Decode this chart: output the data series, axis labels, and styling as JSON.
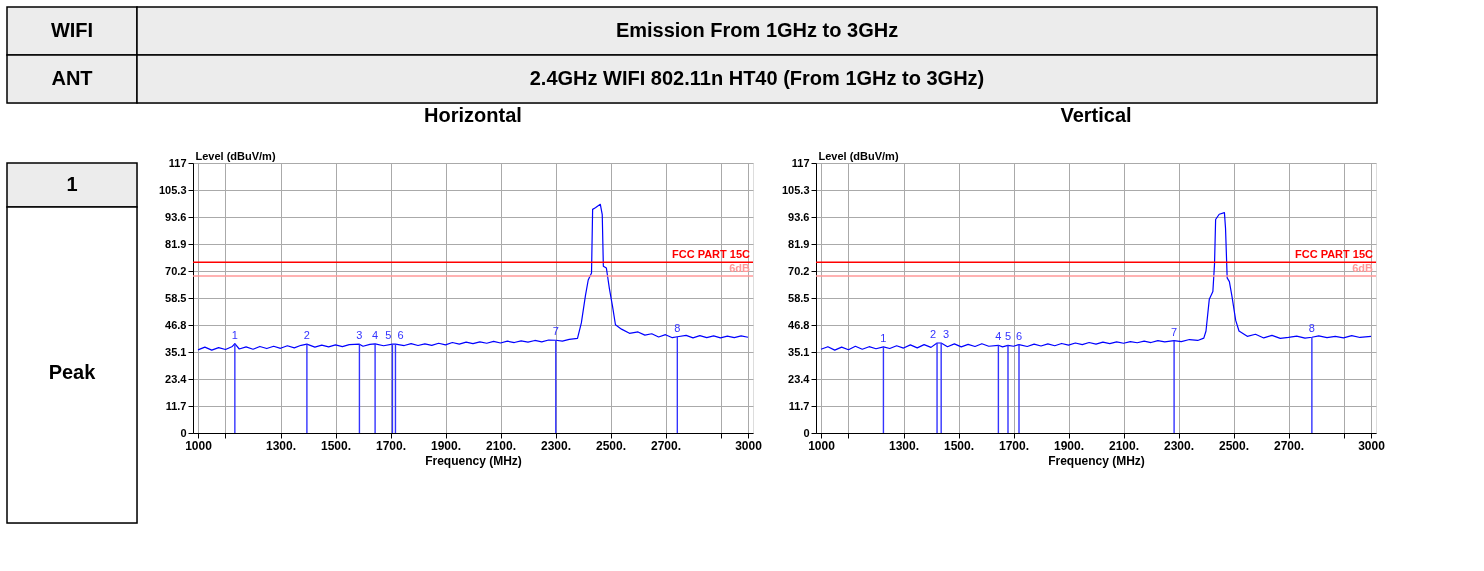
{
  "chart_data": [
    {
      "type": "other",
      "annotations": [
        "WIFI",
        "Emission From 1GHz to 3GHz",
        "ANT",
        "2.4GHz WIFI 802.11n HT40 (From 1GHz to 3GHz)",
        "1",
        "Peak"
      ]
    },
    {
      "type": "line",
      "title": "Horizontal",
      "xlabel": "Frequency (MHz)",
      "ylabel": "Level (dBuV/m)",
      "xlim": [
        1000,
        3000
      ],
      "ylim": [
        0,
        117
      ],
      "xticks": [
        1000,
        {
          "value": 1100,
          "label": null
        },
        {
          "value": 1300,
          "label": "1300."
        },
        {
          "value": 1500,
          "label": "1500."
        },
        {
          "value": 1700,
          "label": "1700."
        },
        {
          "value": 1900,
          "label": "1900."
        },
        {
          "value": 2100,
          "label": "2100."
        },
        {
          "value": 2300,
          "label": "2300."
        },
        {
          "value": 2500,
          "label": "2500."
        },
        {
          "value": 2700,
          "label": "2700."
        },
        {
          "value": 2900,
          "label": null
        },
        3000
      ],
      "yticks": [
        0,
        11.7,
        23.4,
        35.1,
        46.8,
        58.5,
        70.2,
        81.9,
        93.6,
        105.3,
        117
      ],
      "grid": true,
      "ref_lines": [
        {
          "axis": "y",
          "value": 74,
          "label": "FCC PART 15C",
          "color": "#ff0000"
        },
        {
          "axis": "y",
          "value": 68,
          "label": "6dB",
          "color": "#ff9999"
        }
      ],
      "series": [
        {
          "type": "line",
          "color": "#0000ff",
          "x": [
            1000,
            1025,
            1050,
            1075,
            1100,
            1125,
            1134,
            1150,
            1175,
            1200,
            1225,
            1250,
            1275,
            1300,
            1325,
            1350,
            1375,
            1396,
            1425,
            1450,
            1475,
            1500,
            1525,
            1550,
            1587,
            1600,
            1625,
            1644,
            1675,
            1707,
            1718,
            1750,
            1775,
            1800,
            1825,
            1850,
            1875,
            1900,
            1925,
            1950,
            1975,
            2000,
            2025,
            2050,
            2075,
            2100,
            2125,
            2150,
            2175,
            2200,
            2225,
            2250,
            2275,
            2301,
            2325,
            2350,
            2380,
            2394,
            2409,
            2419,
            2431,
            2435,
            2445,
            2463,
            2470,
            2474,
            2485,
            2496,
            2508,
            2518,
            2540,
            2569,
            2600,
            2625,
            2650,
            2675,
            2700,
            2725,
            2743,
            2775,
            2800,
            2825,
            2850,
            2875,
            2900,
            2925,
            2950,
            2975,
            3000
          ],
          "values": [
            36.0,
            37.2,
            35.9,
            37.0,
            36.2,
            37.5,
            38.7,
            36.4,
            37.3,
            36.3,
            37.5,
            36.6,
            37.6,
            36.7,
            37.8,
            36.9,
            38.0,
            38.5,
            37.2,
            38.1,
            37.3,
            38.2,
            37.4,
            38.3,
            38.5,
            37.6,
            38.4,
            38.6,
            37.8,
            38.5,
            38.5,
            37.9,
            38.7,
            37.9,
            38.6,
            38.0,
            38.9,
            38.2,
            39.2,
            38.5,
            39.4,
            38.7,
            39.5,
            38.9,
            39.7,
            39.0,
            39.8,
            39.2,
            39.9,
            39.4,
            40.1,
            39.5,
            40.3,
            40.2,
            39.8,
            40.6,
            41.0,
            47.7,
            59.6,
            66.3,
            69.3,
            96.9,
            97.6,
            99.1,
            94.6,
            72.3,
            71.5,
            62.6,
            54.4,
            46.9,
            45.0,
            43.2,
            43.8,
            42.4,
            43.0,
            41.6,
            42.6,
            41.3,
            41.7,
            42.3,
            41.2,
            42.2,
            41.3,
            42.1,
            41.2,
            42.0,
            41.3,
            42.1,
            41.5
          ]
        },
        {
          "type": "bar",
          "color": "#3333ff",
          "x": [
            1134,
            1396,
            1587,
            1644,
            1707,
            1718,
            2301,
            2743
          ],
          "values": [
            38.7,
            38.5,
            38.5,
            38.6,
            38.5,
            38.5,
            40.2,
            41.7
          ]
        }
      ],
      "annotations": [
        {
          "text": "1",
          "x": 1134,
          "y": 38.7
        },
        {
          "text": "2",
          "x": 1396,
          "y": 38.5
        },
        {
          "text": "3",
          "x": 1587,
          "y": 38.5
        },
        {
          "text": "4",
          "x": 1644,
          "y": 38.6
        },
        {
          "text": "5",
          "x": 1707,
          "y": 38.5
        },
        {
          "text": "6",
          "x": 1718,
          "y": 38.5
        },
        {
          "text": "7",
          "x": 2301,
          "y": 40.2
        },
        {
          "text": "8",
          "x": 2743,
          "y": 41.7
        }
      ]
    },
    {
      "type": "line",
      "title": "Vertical",
      "xlabel": "Frequency (MHz)",
      "ylabel": "Level (dBuV/m)",
      "xlim": [
        1000,
        3000
      ],
      "ylim": [
        0,
        117
      ],
      "xticks": [
        1000,
        {
          "value": 1100,
          "label": null
        },
        {
          "value": 1300,
          "label": "1300."
        },
        {
          "value": 1500,
          "label": "1500."
        },
        {
          "value": 1700,
          "label": "1700."
        },
        {
          "value": 1900,
          "label": "1900."
        },
        {
          "value": 2100,
          "label": "2100."
        },
        {
          "value": 2300,
          "label": "2300."
        },
        {
          "value": 2500,
          "label": "2500."
        },
        {
          "value": 2700,
          "label": "2700."
        },
        {
          "value": 2900,
          "label": null
        },
        3000
      ],
      "yticks": [
        0,
        11.7,
        23.4,
        35.1,
        46.8,
        58.5,
        70.2,
        81.9,
        93.6,
        105.3,
        117
      ],
      "grid": true,
      "ref_lines": [
        {
          "axis": "y",
          "value": 74,
          "label": "FCC PART 15C",
          "color": "#ff0000"
        },
        {
          "axis": "y",
          "value": 68,
          "label": "6dB",
          "color": "#ff9999"
        }
      ],
      "series": [
        {
          "type": "line",
          "color": "#0000ff",
          "x": [
            1000,
            1025,
            1050,
            1075,
            1100,
            1125,
            1150,
            1175,
            1200,
            1227,
            1250,
            1275,
            1300,
            1325,
            1350,
            1375,
            1400,
            1422,
            1437,
            1460,
            1485,
            1510,
            1535,
            1560,
            1585,
            1610,
            1645,
            1660,
            1680,
            1700,
            1720,
            1750,
            1775,
            1800,
            1825,
            1850,
            1875,
            1900,
            1925,
            1950,
            1975,
            2000,
            2025,
            2050,
            2075,
            2100,
            2125,
            2150,
            2175,
            2200,
            2225,
            2250,
            2284,
            2310,
            2340,
            2370,
            2392,
            2400,
            2412,
            2425,
            2431,
            2435,
            2448,
            2467,
            2471,
            2477,
            2485,
            2494,
            2508,
            2520,
            2550,
            2580,
            2610,
            2640,
            2670,
            2700,
            2730,
            2760,
            2785,
            2810,
            2840,
            2870,
            2900,
            2930,
            2960,
            3000
          ],
          "values": [
            36.3,
            37.4,
            35.9,
            37.2,
            36.1,
            37.6,
            36.3,
            37.4,
            36.5,
            37.3,
            36.6,
            37.8,
            36.8,
            38.2,
            36.9,
            38.3,
            37.1,
            39.0,
            39.0,
            37.4,
            38.6,
            37.3,
            38.4,
            37.5,
            38.7,
            37.6,
            38.0,
            37.3,
            38.0,
            37.6,
            38.3,
            37.5,
            38.5,
            37.7,
            38.6,
            37.8,
            38.8,
            38.1,
            39.0,
            38.3,
            39.2,
            38.5,
            39.4,
            38.7,
            39.5,
            38.9,
            39.6,
            39.1,
            39.8,
            39.2,
            40.0,
            39.5,
            40.0,
            39.6,
            40.5,
            40.1,
            41.1,
            44.2,
            58.0,
            61.3,
            73.3,
            92.5,
            94.8,
            95.5,
            88.7,
            67.2,
            65.6,
            59.5,
            48.8,
            44.2,
            41.9,
            42.8,
            41.2,
            42.3,
            41.0,
            41.4,
            42.0,
            41.1,
            41.5,
            42.1,
            41.3,
            41.9,
            41.2,
            42.2,
            41.4,
            41.9
          ]
        },
        {
          "type": "bar",
          "color": "#3333ff",
          "x": [
            1227,
            1422,
            1437,
            1645,
            1680,
            1720,
            2284,
            2785
          ],
          "values": [
            37.3,
            39.0,
            39.0,
            38.0,
            38.0,
            38.3,
            40.0,
            41.5
          ]
        }
      ],
      "annotations": [
        {
          "text": "1",
          "x": 1227,
          "y": 37.3
        },
        {
          "text": "2",
          "x": 1422,
          "y": 39.0
        },
        {
          "text": "3",
          "x": 1437,
          "y": 39.0
        },
        {
          "text": "4",
          "x": 1645,
          "y": 38.0
        },
        {
          "text": "5",
          "x": 1680,
          "y": 38.0
        },
        {
          "text": "6",
          "x": 1720,
          "y": 38.3
        },
        {
          "text": "7",
          "x": 2284,
          "y": 40.0
        },
        {
          "text": "8",
          "x": 2785,
          "y": 41.5
        }
      ]
    }
  ]
}
